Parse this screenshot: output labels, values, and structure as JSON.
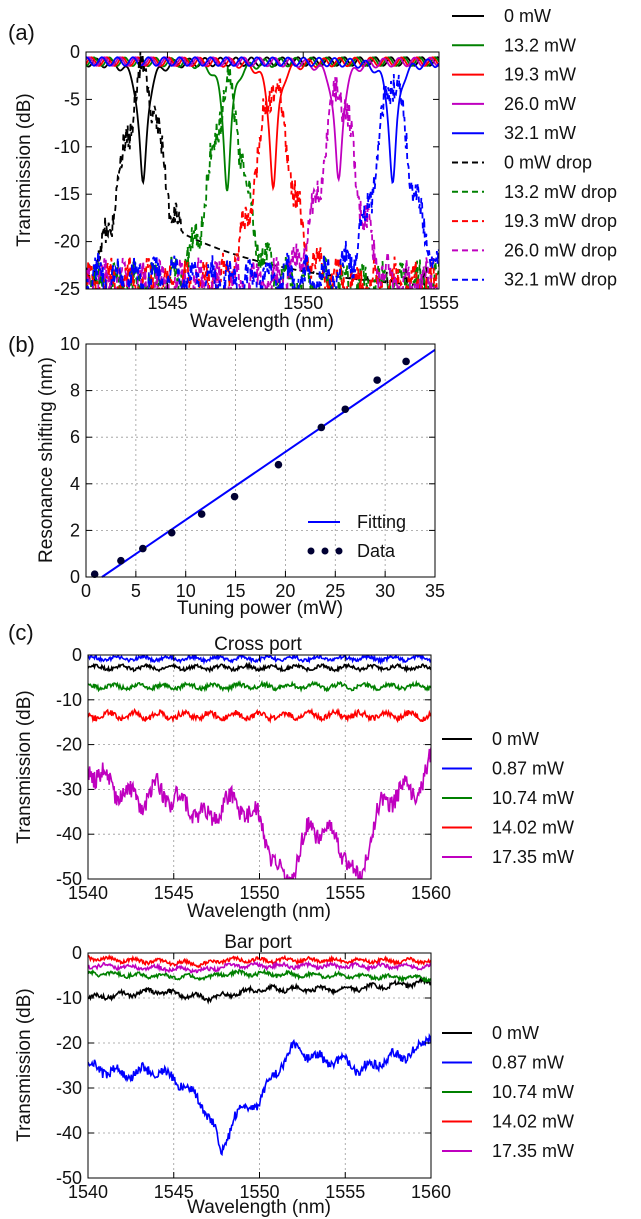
{
  "chart_data": [
    {
      "panel_label": "(a)",
      "type": "line",
      "xlabel": "Wavelength (nm)",
      "ylabel": "Transmission (dB)",
      "xlim": [
        1542,
        1555
      ],
      "ylim": [
        -25,
        0
      ],
      "xticks": [
        1545,
        1550,
        1555
      ],
      "yticks": [
        0,
        -5,
        -10,
        -15,
        -20,
        -25
      ],
      "grid": false,
      "legend_position": "outside-right",
      "series": [
        {
          "name": "0 mW",
          "color": "#000000",
          "dash": false,
          "kind": "thru",
          "center": 1544.1,
          "depth": -14.2
        },
        {
          "name": "13.2 mW",
          "color": "#008000",
          "dash": false,
          "kind": "thru",
          "center": 1547.2,
          "depth": -14.3
        },
        {
          "name": "19.3 mW",
          "color": "#ff0000",
          "dash": false,
          "kind": "thru",
          "center": 1548.9,
          "depth": -14.3
        },
        {
          "name": "26.0 mW",
          "color": "#bf00bf",
          "dash": false,
          "kind": "thru",
          "center": 1551.3,
          "depth": -13.8
        },
        {
          "name": "32.1 mW",
          "color": "#0000ff",
          "dash": false,
          "kind": "thru",
          "center": 1553.3,
          "depth": -13.8
        },
        {
          "name": "0 mW drop",
          "color": "#000000",
          "dash": true,
          "kind": "drop",
          "center": 1544.1,
          "floor": -25.5,
          "peak": -2,
          "width": 1.1
        },
        {
          "name": "13.2 mW drop",
          "color": "#008000",
          "dash": true,
          "kind": "drop",
          "center": 1547.2,
          "floor": -24.5,
          "peak": -3.5,
          "width": 0.9
        },
        {
          "name": "19.3 mW drop",
          "color": "#ff0000",
          "dash": true,
          "kind": "drop",
          "center": 1548.9,
          "floor": -24.5,
          "peak": -3,
          "width": 0.9
        },
        {
          "name": "26.0 mW drop",
          "color": "#bf00bf",
          "dash": true,
          "kind": "drop",
          "center": 1551.3,
          "floor": -24.5,
          "peak": -3.5,
          "width": 0.9
        },
        {
          "name": "32.1 mW drop",
          "color": "#0000ff",
          "dash": true,
          "kind": "drop",
          "center": 1553.3,
          "floor": -24,
          "peak": -2.5,
          "width": 0.9
        }
      ]
    },
    {
      "panel_label": "(b)",
      "type": "scatter",
      "xlabel": "Tuning power (mW)",
      "ylabel": "Resonance shifting (nm)",
      "xlim": [
        0,
        35
      ],
      "ylim": [
        0,
        10
      ],
      "xticks": [
        0,
        5,
        10,
        15,
        20,
        25,
        30,
        35
      ],
      "yticks": [
        0,
        2,
        4,
        6,
        8,
        10
      ],
      "grid": true,
      "legend_position": "lower-right",
      "series": [
        {
          "name": "Fitting",
          "color": "#0000ff",
          "kind": "line",
          "x": [
            1.6,
            35
          ],
          "y": [
            0,
            9.75
          ]
        },
        {
          "name": "Data",
          "color": "#000033",
          "kind": "points",
          "x": [
            0.87,
            3.5,
            5.7,
            8.6,
            11.6,
            14.9,
            19.3,
            23.6,
            26.0,
            29.2,
            32.1
          ],
          "y": [
            0.12,
            0.7,
            1.22,
            1.9,
            2.7,
            3.45,
            4.82,
            6.42,
            7.2,
            8.45,
            9.25
          ]
        }
      ]
    },
    {
      "panel_label": "(c)",
      "type": "line",
      "title": "Cross port",
      "xlabel": "Wavelength (nm)",
      "ylabel": "Transmission (dB)",
      "xlim": [
        1540,
        1560
      ],
      "ylim": [
        -50,
        0
      ],
      "xticks": [
        1540,
        1545,
        1550,
        1555,
        1560
      ],
      "yticks": [
        0,
        -10,
        -20,
        -30,
        -40,
        -50
      ],
      "grid": true,
      "legend_position": "outside-right",
      "series": [
        {
          "name": "0 mW",
          "color": "#000000",
          "level": -2.8,
          "noise": 0.5
        },
        {
          "name": "0.87 mW",
          "color": "#0000ff",
          "level": -0.8,
          "noise": 0.5
        },
        {
          "name": "10.74 mW",
          "color": "#008000",
          "level": -7.0,
          "noise": 0.6
        },
        {
          "name": "14.02 mW",
          "color": "#ff0000",
          "level": -13.5,
          "noise": 0.8
        },
        {
          "name": "17.35 mW",
          "color": "#bf00bf",
          "level": -30,
          "noise": 2.5,
          "profile": [
            [
              1540,
              -25
            ],
            [
              1541,
              -28
            ],
            [
              1542,
              -31
            ],
            [
              1543,
              -33
            ],
            [
              1544,
              -30
            ],
            [
              1545,
              -32
            ],
            [
              1546,
              -34
            ],
            [
              1547,
              -37
            ],
            [
              1548,
              -33
            ],
            [
              1549,
              -34
            ],
            [
              1550,
              -37
            ],
            [
              1550.8,
              -45
            ],
            [
              1551.5,
              -52
            ],
            [
              1552.2,
              -45
            ],
            [
              1553,
              -38
            ],
            [
              1554,
              -40
            ],
            [
              1555,
              -44
            ],
            [
              1555.8,
              -52
            ],
            [
              1556.5,
              -39
            ],
            [
              1557,
              -35
            ],
            [
              1558,
              -30
            ],
            [
              1559,
              -31
            ],
            [
              1560,
              -24
            ]
          ]
        }
      ]
    },
    {
      "panel_label": "",
      "type": "line",
      "title": "Bar port",
      "xlabel": "Wavelength (nm)",
      "ylabel": "Transmission (dB)",
      "xlim": [
        1540,
        1560
      ],
      "ylim": [
        -50,
        0
      ],
      "xticks": [
        1540,
        1545,
        1550,
        1555,
        1560
      ],
      "yticks": [
        0,
        -10,
        -20,
        -30,
        -40,
        -50
      ],
      "grid": true,
      "legend_position": "outside-right",
      "series": [
        {
          "name": "0 mW",
          "color": "#000000",
          "level": -8.5,
          "noise": 0.6,
          "profile": [
            [
              1540,
              -10
            ],
            [
              1544,
              -8.5
            ],
            [
              1547,
              -10
            ],
            [
              1550,
              -8
            ],
            [
              1555,
              -8
            ],
            [
              1560,
              -6.5
            ]
          ]
        },
        {
          "name": "0.87 mW",
          "color": "#0000ff",
          "level": -25,
          "noise": 1.3,
          "profile": [
            [
              1540,
              -25
            ],
            [
              1542,
              -27
            ],
            [
              1544,
              -26
            ],
            [
              1545.5,
              -29
            ],
            [
              1546.5,
              -33
            ],
            [
              1547.2,
              -37
            ],
            [
              1547.8,
              -45
            ],
            [
              1548.5,
              -36
            ],
            [
              1549.5,
              -34
            ],
            [
              1550,
              -33
            ],
            [
              1551,
              -26
            ],
            [
              1552,
              -21
            ],
            [
              1553,
              -23
            ],
            [
              1554,
              -24
            ],
            [
              1555,
              -24
            ],
            [
              1556,
              -26
            ],
            [
              1557,
              -24
            ],
            [
              1558,
              -23
            ],
            [
              1559,
              -22
            ],
            [
              1560,
              -18
            ]
          ]
        },
        {
          "name": "10.74 mW",
          "color": "#008000",
          "level": -4.5,
          "noise": 0.5,
          "profile": [
            [
              1540,
              -4.5
            ],
            [
              1547,
              -5.5
            ],
            [
              1548,
              -4.5
            ],
            [
              1560,
              -5.5
            ]
          ]
        },
        {
          "name": "14.02 mW",
          "color": "#ff0000",
          "level": -1.5,
          "noise": 0.5,
          "profile": [
            [
              1540,
              -1.2
            ],
            [
              1547,
              -2.5
            ],
            [
              1548,
              -1.5
            ],
            [
              1560,
              -1.8
            ]
          ]
        },
        {
          "name": "17.35 mW",
          "color": "#bf00bf",
          "level": -2.5,
          "noise": 0.5,
          "profile": [
            [
              1540,
              -2.8
            ],
            [
              1547,
              -3.8
            ],
            [
              1548,
              -2.8
            ],
            [
              1560,
              -3.0
            ]
          ]
        }
      ]
    }
  ]
}
